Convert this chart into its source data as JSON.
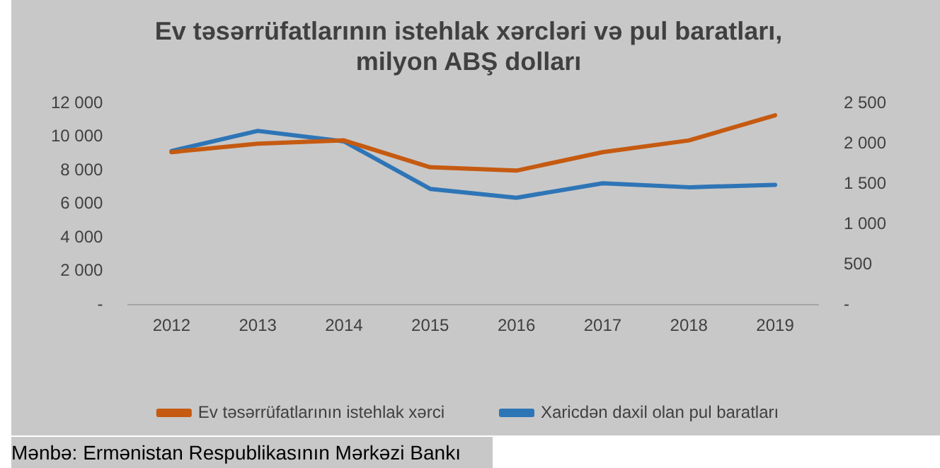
{
  "chart_data": {
    "type": "line",
    "title": "Ev təsərrüfatlarının istehlak xərcləri və pul baratları, milyon ABŞ dolları",
    "categories": [
      "2012",
      "2013",
      "2014",
      "2015",
      "2016",
      "2017",
      "2018",
      "2019"
    ],
    "series": [
      {
        "name": "Ev təsərrüfatlarının istehlak xərci",
        "color": "#c55a11",
        "values": [
          9100,
          9600,
          9800,
          8200,
          8000,
          9100,
          9800,
          11300
        ]
      },
      {
        "name": "Xaricdən daxil olan pul baratları",
        "color": "#2e75b6",
        "axis": "y2",
        "values": [
          1910,
          2160,
          2030,
          1440,
          1330,
          1510,
          1460,
          1490
        ]
      }
    ],
    "ylim": [
      0,
      12000
    ],
    "yticks": [
      {
        "value": 0,
        "label": "-"
      },
      {
        "value": 2000,
        "label": "2 000"
      },
      {
        "value": 4000,
        "label": "4 000"
      },
      {
        "value": 6000,
        "label": "6 000"
      },
      {
        "value": 8000,
        "label": "8 000"
      },
      {
        "value": 10000,
        "label": "10 000"
      },
      {
        "value": 12000,
        "label": "12 000"
      }
    ],
    "y2lim": [
      0,
      2500
    ],
    "y2ticks": [
      {
        "value": 0,
        "label": "-"
      },
      {
        "value": 500,
        "label": "500"
      },
      {
        "value": 1000,
        "label": "1 000"
      },
      {
        "value": 1500,
        "label": "1 500"
      },
      {
        "value": 2000,
        "label": "2 000"
      },
      {
        "value": 2500,
        "label": "2 500"
      }
    ],
    "grid": false,
    "legend": "bottom",
    "marker": "none",
    "line_style": "solid",
    "annotations": [
      "Mənbə: Ermənistan Respublikasının Mərkəzi Bankı"
    ]
  }
}
